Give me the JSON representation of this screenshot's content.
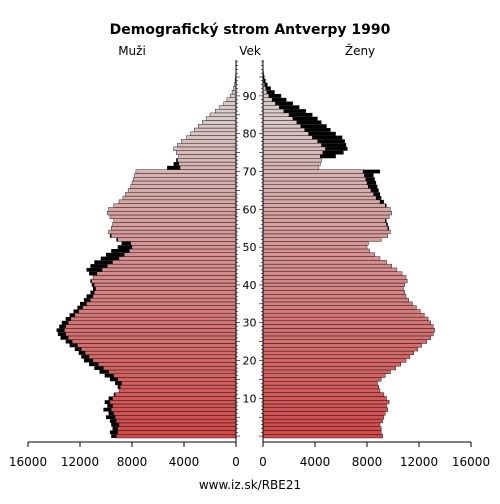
{
  "chart_data": {
    "type": "bar",
    "orientation": "horizontal",
    "title": "Demografický strom Antverpy 1990",
    "left_label": "Muži",
    "center_label": "Vek",
    "right_label": "Ženy",
    "source": "www.iz.sk/RBE21",
    "age_ticks": [
      "10",
      "20",
      "30",
      "40",
      "50",
      "60",
      "70",
      "80",
      "90"
    ],
    "x_ticks_left": [
      "16000",
      "12000",
      "8000",
      "4000",
      "0"
    ],
    "x_ticks_right": [
      "0",
      "4000",
      "8000",
      "12000",
      "16000"
    ],
    "xlim": [
      0,
      16000
    ],
    "age_range": [
      0,
      99
    ],
    "colors": {
      "young": "#d24a4a",
      "old": "#d9c9c9",
      "excess": "#000000",
      "grid": "#000000"
    },
    "series": [
      {
        "name": "Muži",
        "ages": [
          0,
          1,
          2,
          3,
          4,
          5,
          6,
          7,
          8,
          9,
          10,
          11,
          12,
          13,
          14,
          15,
          16,
          17,
          18,
          19,
          20,
          21,
          22,
          23,
          24,
          25,
          26,
          27,
          28,
          29,
          30,
          31,
          32,
          33,
          34,
          35,
          36,
          37,
          38,
          39,
          40,
          41,
          42,
          43,
          44,
          45,
          46,
          47,
          48,
          49,
          50,
          51,
          52,
          53,
          54,
          55,
          56,
          57,
          58,
          59,
          60,
          61,
          62,
          63,
          64,
          65,
          66,
          67,
          68,
          69,
          70,
          71,
          72,
          73,
          74,
          75,
          76,
          77,
          78,
          79,
          80,
          81,
          82,
          83,
          84,
          85,
          86,
          87,
          88,
          89,
          90,
          91,
          92,
          93,
          94,
          95,
          96,
          97,
          98,
          99
        ],
        "values": [
          9600,
          9700,
          9500,
          9600,
          9700,
          10000,
          9800,
          10200,
          9900,
          10100,
          9800,
          9400,
          9000,
          9100,
          9300,
          9700,
          10100,
          10500,
          10900,
          11300,
          11700,
          11900,
          12100,
          12400,
          12800,
          13100,
          13500,
          13700,
          13800,
          13600,
          13400,
          13100,
          12800,
          12500,
          12200,
          12000,
          11700,
          11500,
          11200,
          11000,
          11100,
          11200,
          11000,
          11300,
          11500,
          11200,
          10900,
          10400,
          10000,
          9600,
          9100,
          8800,
          9200,
          9700,
          9800,
          9600,
          9500,
          9400,
          9700,
          9900,
          9800,
          9400,
          9000,
          8700,
          8500,
          8300,
          8100,
          8000,
          7900,
          7800,
          7700,
          5300,
          4800,
          4600,
          4400,
          4600,
          4800,
          4500,
          4200,
          3800,
          3500,
          3200,
          2900,
          2600,
          2300,
          2000,
          1600,
          1250,
          950,
          700,
          450,
          300,
          200,
          120,
          70,
          40,
          20,
          10,
          5,
          2
        ]
      },
      {
        "name": "Ženy",
        "ages": [
          0,
          1,
          2,
          3,
          4,
          5,
          6,
          7,
          8,
          9,
          10,
          11,
          12,
          13,
          14,
          15,
          16,
          17,
          18,
          19,
          20,
          21,
          22,
          23,
          24,
          25,
          26,
          27,
          28,
          29,
          30,
          31,
          32,
          33,
          34,
          35,
          36,
          37,
          38,
          39,
          40,
          41,
          42,
          43,
          44,
          45,
          46,
          47,
          48,
          49,
          50,
          51,
          52,
          53,
          54,
          55,
          56,
          57,
          58,
          59,
          60,
          61,
          62,
          63,
          64,
          65,
          66,
          67,
          68,
          69,
          70,
          71,
          72,
          73,
          74,
          75,
          76,
          77,
          78,
          79,
          80,
          81,
          82,
          83,
          84,
          85,
          86,
          87,
          88,
          89,
          90,
          91,
          92,
          93,
          94,
          95,
          96,
          97,
          98,
          99
        ],
        "values": [
          9200,
          9100,
          9100,
          9000,
          9200,
          9300,
          9400,
          9600,
          9500,
          9700,
          9500,
          9300,
          9000,
          8900,
          8800,
          9100,
          9400,
          9800,
          10200,
          10600,
          11000,
          11300,
          11600,
          11900,
          12200,
          12600,
          12900,
          13100,
          13200,
          13100,
          12900,
          12700,
          12400,
          12100,
          11800,
          11500,
          11200,
          11000,
          10900,
          10800,
          10900,
          11100,
          11000,
          10700,
          10300,
          9900,
          9500,
          9000,
          8600,
          8200,
          8000,
          8100,
          9100,
          9600,
          9800,
          9700,
          9600,
          9500,
          9700,
          9900,
          9800,
          9500,
          9300,
          9100,
          9000,
          8900,
          8800,
          8700,
          8600,
          8500,
          9000,
          4300,
          4400,
          4500,
          5600,
          6200,
          6500,
          6400,
          6300,
          6100,
          5600,
          5200,
          4900,
          4500,
          4200,
          3800,
          3300,
          2800,
          2300,
          1800,
          1400,
          900,
          600,
          350,
          200,
          110,
          60,
          30,
          15,
          6
        ]
      }
    ],
    "color_gradient": "pink-to-red by age"
  }
}
